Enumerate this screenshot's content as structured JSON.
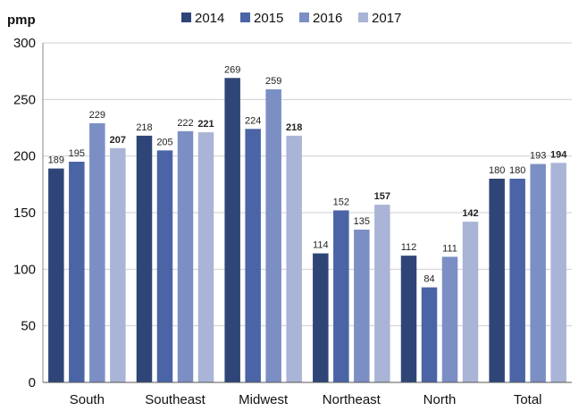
{
  "chart_data": {
    "type": "bar",
    "ylabel": "pmp",
    "ylim": [
      0,
      300
    ],
    "yticks": [
      0,
      50,
      100,
      150,
      200,
      250,
      300
    ],
    "grid": true,
    "legend_position": "top",
    "categories": [
      "South",
      "Southeast",
      "Midwest",
      "Northeast",
      "North",
      "Total"
    ],
    "series": [
      {
        "name": "2014",
        "color": "#2f4577",
        "values": [
          189,
          218,
          269,
          114,
          112,
          180
        ]
      },
      {
        "name": "2015",
        "color": "#4a64a6",
        "values": [
          195,
          205,
          224,
          152,
          84,
          180
        ]
      },
      {
        "name": "2016",
        "color": "#7c8fc4",
        "values": [
          229,
          222,
          259,
          135,
          111,
          193
        ]
      },
      {
        "name": "2017",
        "color": "#a9b4d6",
        "values": [
          207,
          221,
          218,
          157,
          142,
          194
        ]
      }
    ],
    "bold_label_series": [
      "2017"
    ]
  }
}
